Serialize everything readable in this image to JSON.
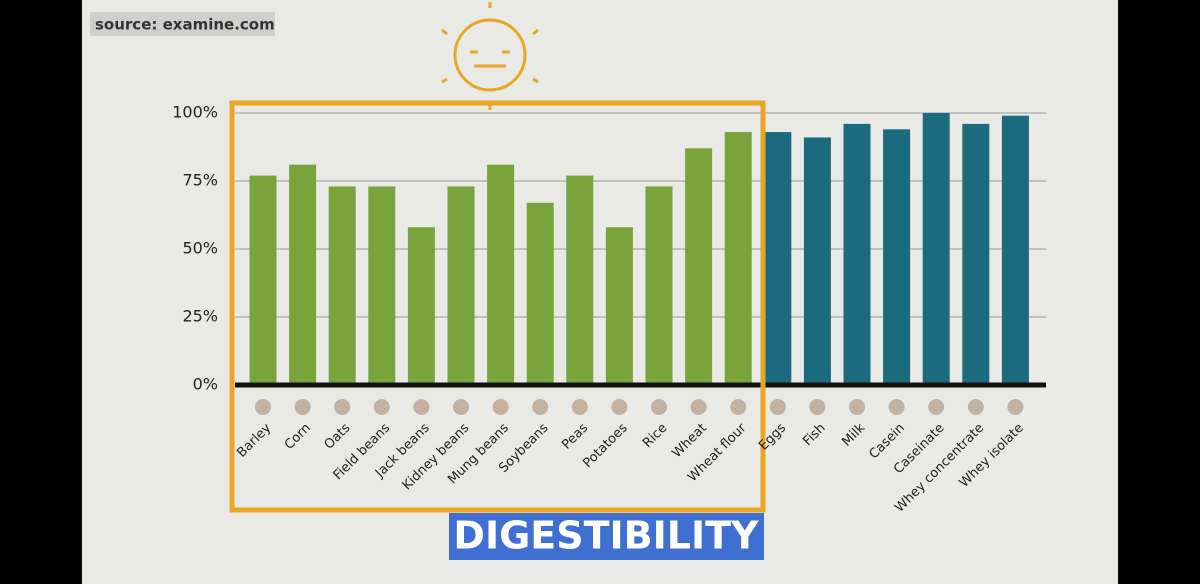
{
  "chart_data": {
    "type": "bar",
    "title": "DIGESTIBILITY",
    "source": "source: examine.com",
    "categories": [
      "Barley",
      "Corn",
      "Oats",
      "Field beans",
      "Jack beans",
      "Kidney beans",
      "Mung beans",
      "Soybeans",
      "Peas",
      "Potatoes",
      "Rice",
      "Wheat",
      "Wheat flour",
      "Eggs",
      "Fish",
      "Milk",
      "Casein",
      "Caseinate",
      "Whey concentrate",
      "Whey isolate"
    ],
    "values": [
      77,
      81,
      73,
      73,
      58,
      73,
      81,
      67,
      77,
      58,
      73,
      87,
      93,
      93,
      91,
      96,
      94,
      100,
      96,
      99
    ],
    "colors": [
      "#78a43b",
      "#78a43b",
      "#78a43b",
      "#78a43b",
      "#78a43b",
      "#78a43b",
      "#78a43b",
      "#78a43b",
      "#78a43b",
      "#78a43b",
      "#78a43b",
      "#78a43b",
      "#78a43b",
      "#1b6a7e",
      "#1b6a7e",
      "#1b6a7e",
      "#1b6a7e",
      "#1b6a7e",
      "#1b6a7e",
      "#1b6a7e"
    ],
    "ylim": [
      0,
      100
    ],
    "yticks": [
      {
        "value": 0,
        "label": "0%"
      },
      {
        "value": 25,
        "label": "25%"
      },
      {
        "value": 50,
        "label": "50%"
      },
      {
        "value": 75,
        "label": "75%"
      },
      {
        "value": 100,
        "label": "100%"
      }
    ],
    "grid": true
  }
}
